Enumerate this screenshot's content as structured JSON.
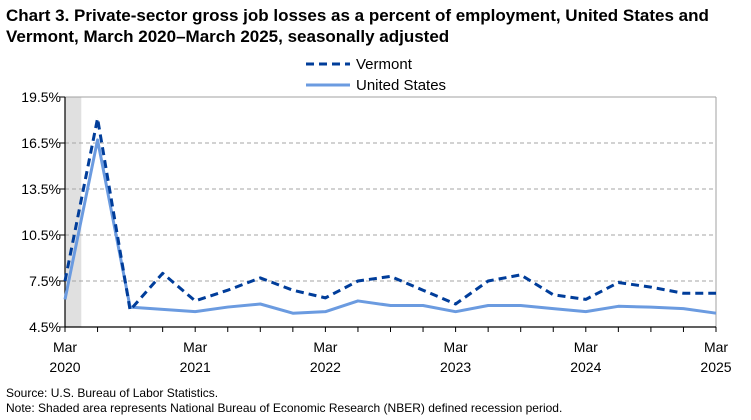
{
  "chart_data": {
    "type": "line",
    "title": "Chart 3. Private-sector gross job losses as a percent of employment, United States and Vermont, March 2020–March 2025, seasonally adjusted",
    "xlabel": "",
    "ylabel": "",
    "ylim": [
      4.5,
      19.5
    ],
    "yticks": [
      "4.5%",
      "7.5%",
      "10.5%",
      "13.5%",
      "16.5%",
      "19.5%"
    ],
    "ytick_values": [
      4.5,
      7.5,
      10.5,
      13.5,
      16.5,
      19.5
    ],
    "xticks": [
      [
        "Mar",
        "2020"
      ],
      [
        "Mar",
        "2021"
      ],
      [
        "Mar",
        "2022"
      ],
      [
        "Mar",
        "2023"
      ],
      [
        "Mar",
        "2024"
      ],
      [
        "Mar",
        "2025"
      ]
    ],
    "x": [
      "Mar 2020",
      "Jun 2020",
      "Sep 2020",
      "Dec 2020",
      "Mar 2021",
      "Jun 2021",
      "Sep 2021",
      "Dec 2021",
      "Mar 2022",
      "Jun 2022",
      "Sep 2022",
      "Dec 2022",
      "Mar 2023",
      "Jun 2023",
      "Sep 2023",
      "Dec 2023",
      "Mar 2024",
      "Jun 2024",
      "Sep 2024",
      "Dec 2024",
      "Mar 2025"
    ],
    "grid": "horizontal dashed",
    "legend_placement": "top-center",
    "recession_shading": {
      "label": "NBER recession",
      "from": "Mar 2020",
      "to": "Apr 2020",
      "color": "#e0e0e0"
    },
    "series": [
      {
        "name": "Vermont",
        "style": "dashed",
        "color": "#003d9a",
        "values": [
          7.5,
          18.1,
          5.6,
          8.0,
          6.2,
          6.9,
          7.7,
          6.9,
          6.4,
          7.5,
          7.8,
          6.9,
          6.0,
          7.5,
          7.9,
          6.6,
          6.3,
          7.4,
          7.1,
          6.7,
          6.7
        ]
      },
      {
        "name": "United States",
        "style": "solid",
        "color": "#6b9be0",
        "values": [
          6.3,
          16.7,
          5.8,
          5.65,
          5.5,
          5.8,
          6.0,
          5.4,
          5.5,
          6.2,
          5.9,
          5.9,
          5.5,
          5.9,
          5.9,
          5.7,
          5.5,
          5.85,
          5.8,
          5.7,
          5.4
        ]
      }
    ]
  },
  "footer": {
    "source": "Source: U.S. Bureau of Labor Statistics.",
    "note": "Note: Shaded area represents National Bureau of Economic Research (NBER) defined  recession period."
  }
}
